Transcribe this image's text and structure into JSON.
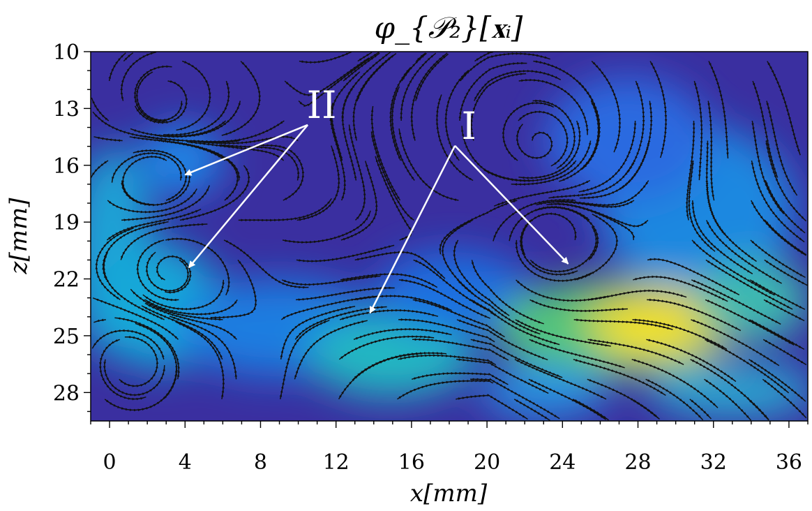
{
  "chart_data": {
    "type": "heatmap",
    "title": "φ_{𝒫₂}[𝐱ᵢ]",
    "xlabel": "x[mm]",
    "ylabel": "z[mm]",
    "xlim": [
      -1,
      37
    ],
    "ylim": [
      29.5,
      10
    ],
    "x_ticks": [
      0,
      4,
      8,
      12,
      16,
      20,
      24,
      28,
      32,
      36
    ],
    "y_ticks": [
      10,
      13,
      16,
      19,
      22,
      25,
      28
    ],
    "colormap": "parula",
    "overlay": "streamlines",
    "annotations": [
      {
        "text": "II",
        "x": 10.5,
        "z": 13.5,
        "arrows_to": [
          [
            4.0,
            16.5
          ],
          [
            4.2,
            21.4
          ]
        ]
      },
      {
        "text": "I",
        "x": 18.3,
        "z": 14.6,
        "arrows_to": [
          [
            13.8,
            23.8
          ],
          [
            24.3,
            21.2
          ]
        ]
      }
    ]
  },
  "colors": {
    "low": "#352a87",
    "mid_low": "#1e6fd9",
    "mid": "#12beb9",
    "high": "#f9fb0e",
    "streamline": "#111111",
    "annotation": "#ffffff"
  }
}
